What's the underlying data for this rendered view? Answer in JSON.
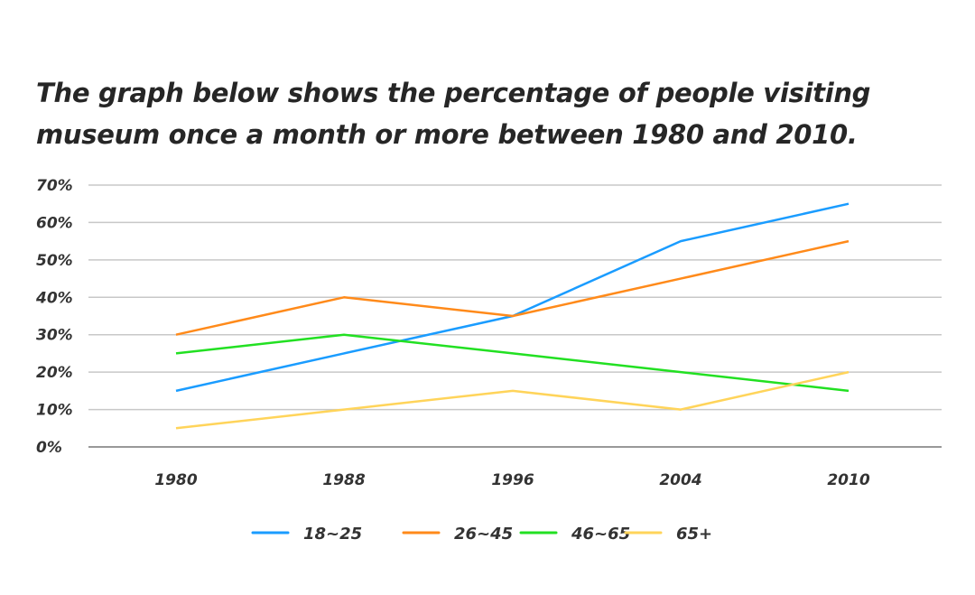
{
  "chart_data": {
    "type": "line",
    "title": "The graph below shows the percentage of people visiting museum once a month or more between 1980 and 2010.",
    "xlabel": "",
    "ylabel": "",
    "categories": [
      "1980",
      "1988",
      "1996",
      "2004",
      "2010"
    ],
    "y_ticks": [
      "0%",
      "10%",
      "20%",
      "30%",
      "40%",
      "50%",
      "60%",
      "70%"
    ],
    "ylim": [
      0,
      70
    ],
    "grid": true,
    "legend_position": "bottom",
    "series": [
      {
        "name": "18~25",
        "color": "#1a9cff",
        "values": [
          15,
          25,
          35,
          55,
          65
        ]
      },
      {
        "name": "26~45",
        "color": "#ff8a1a",
        "values": [
          30,
          40,
          35,
          45,
          55
        ]
      },
      {
        "name": "46~65",
        "color": "#22e022",
        "values": [
          25,
          30,
          25,
          20,
          15
        ]
      },
      {
        "name": "65+",
        "color": "#ffd45a",
        "values": [
          5,
          10,
          15,
          10,
          20
        ]
      }
    ]
  }
}
